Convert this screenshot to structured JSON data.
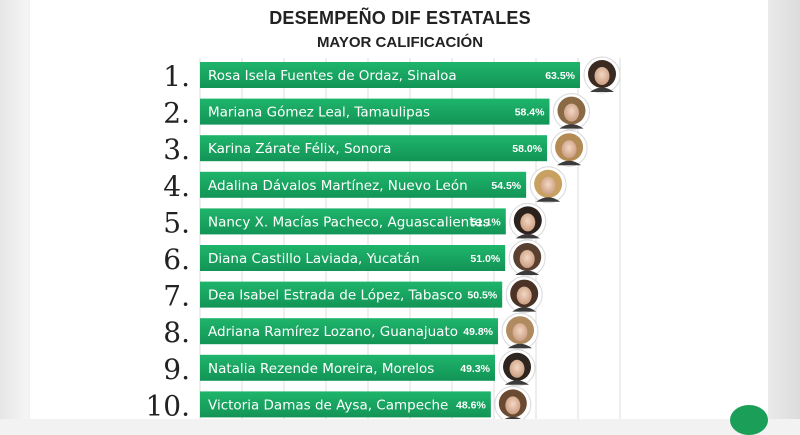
{
  "header": {
    "title": "DESEMPEÑO DIF ESTATALES",
    "subtitle": "MAYOR CALIFICACIÓN"
  },
  "colors": {
    "bar": "#1fb56b",
    "bar_dark": "#129456",
    "grid": "#dddddd",
    "text": "#222222",
    "label": "#ffffff"
  },
  "chart_data": {
    "type": "bar",
    "orientation": "horizontal",
    "title": "DESEMPEÑO DIF ESTATALES",
    "subtitle": "MAYOR CALIFICACIÓN",
    "ranks": [
      "1.",
      "2.",
      "3.",
      "4.",
      "5.",
      "6.",
      "7.",
      "8.",
      "9.",
      "10."
    ],
    "categories": [
      "Rosa Isela Fuentes de Ordaz, Sinaloa",
      "Mariana Gómez Leal, Tamaulipas",
      "Karina Zárate Félix, Sonora",
      "Adalina Dávalos Martínez, Nuevo León",
      "Nancy X. Macías Pacheco, Aguascalientes",
      "Diana Castillo Laviada, Yucatán",
      "Dea Isabel Estrada de López, Tabasco",
      "Adriana Ramírez Lozano, Guanajuato",
      "Natalia Rezende Moreira, Morelos",
      "Victoria Damas de Aysa, Campeche"
    ],
    "values": [
      63.5,
      58.4,
      58.0,
      54.5,
      51.1,
      51.0,
      50.5,
      49.8,
      49.3,
      48.6
    ],
    "value_labels": [
      "63.5%",
      "58.4%",
      "58.0%",
      "54.5%",
      "51.1%",
      "51.0%",
      "50.5%",
      "49.8%",
      "49.3%",
      "48.6%"
    ],
    "unit": "%",
    "xlim": [
      0,
      68
    ],
    "grid": true
  }
}
